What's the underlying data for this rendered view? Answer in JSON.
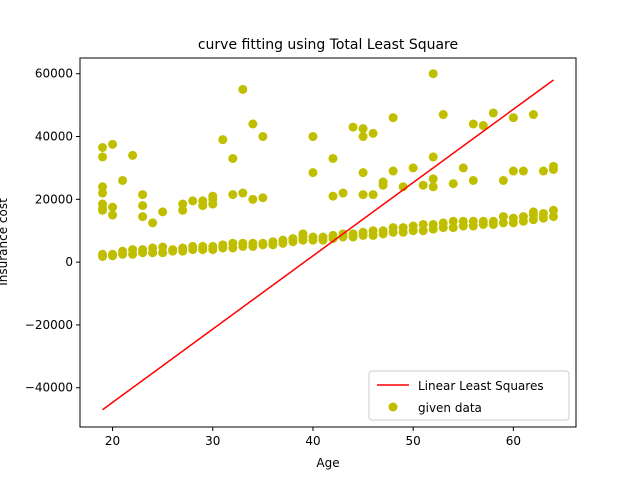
{
  "chart_data": {
    "type": "scatter",
    "title": "curve fitting using Total Least Square",
    "xlabel": "Age",
    "ylabel": "Insurance cost",
    "xlim": [
      16.75,
      66.25
    ],
    "ylim": [
      -52500,
      65000
    ],
    "xticks": [
      20,
      30,
      40,
      50,
      60
    ],
    "yticks": [
      -40000,
      -20000,
      0,
      20000,
      40000,
      60000
    ],
    "xtick_labels": [
      "20",
      "30",
      "40",
      "50",
      "60"
    ],
    "ytick_labels": [
      "−40000",
      "−20000",
      "0",
      "20000",
      "40000",
      "60000"
    ],
    "grid": false,
    "legend_position": "lower-right",
    "series": [
      {
        "name": "Linear Least Squares",
        "kind": "line",
        "color": "#ff0000",
        "x": [
          19,
          64
        ],
        "y": [
          -47000,
          58000
        ]
      },
      {
        "name": "given data",
        "kind": "scatter",
        "color": "#bfbf00",
        "points": [
          [
            19,
            1800
          ],
          [
            19,
            2500
          ],
          [
            19,
            36500
          ],
          [
            19,
            33500
          ],
          [
            19,
            24000
          ],
          [
            19,
            22000
          ],
          [
            19,
            18500
          ],
          [
            19,
            17000
          ],
          [
            19,
            16500
          ],
          [
            20,
            2000
          ],
          [
            20,
            37500
          ],
          [
            20,
            17500
          ],
          [
            20,
            15000
          ],
          [
            20,
            2500
          ],
          [
            21,
            2500
          ],
          [
            21,
            3500
          ],
          [
            21,
            26000
          ],
          [
            22,
            2500
          ],
          [
            22,
            4000
          ],
          [
            22,
            34000
          ],
          [
            23,
            3000
          ],
          [
            23,
            4000
          ],
          [
            23,
            21500
          ],
          [
            23,
            18000
          ],
          [
            23,
            14500
          ],
          [
            24,
            3000
          ],
          [
            24,
            4500
          ],
          [
            24,
            12500
          ],
          [
            25,
            3000
          ],
          [
            25,
            4800
          ],
          [
            25,
            16000
          ],
          [
            26,
            3500
          ],
          [
            26,
            4000
          ],
          [
            27,
            3500
          ],
          [
            27,
            4500
          ],
          [
            27,
            16500
          ],
          [
            27,
            18500
          ],
          [
            28,
            4000
          ],
          [
            28,
            5000
          ],
          [
            28,
            19500
          ],
          [
            29,
            4000
          ],
          [
            29,
            5000
          ],
          [
            29,
            18000
          ],
          [
            29,
            19500
          ],
          [
            30,
            4000
          ],
          [
            30,
            5000
          ],
          [
            30,
            18500
          ],
          [
            30,
            20000
          ],
          [
            30,
            21000
          ],
          [
            31,
            4500
          ],
          [
            31,
            5500
          ],
          [
            31,
            39000
          ],
          [
            32,
            4500
          ],
          [
            32,
            6000
          ],
          [
            32,
            33000
          ],
          [
            32,
            21500
          ],
          [
            33,
            5000
          ],
          [
            33,
            6000
          ],
          [
            33,
            55000
          ],
          [
            33,
            22000
          ],
          [
            34,
            5000
          ],
          [
            34,
            6000
          ],
          [
            34,
            44000
          ],
          [
            34,
            20000
          ],
          [
            35,
            5500
          ],
          [
            35,
            6000
          ],
          [
            35,
            40000
          ],
          [
            35,
            20500
          ],
          [
            36,
            5500
          ],
          [
            36,
            6500
          ],
          [
            37,
            6000
          ],
          [
            37,
            7000
          ],
          [
            38,
            6500
          ],
          [
            38,
            7500
          ],
          [
            39,
            7000
          ],
          [
            39,
            8000
          ],
          [
            39,
            9000
          ],
          [
            40,
            7000
          ],
          [
            40,
            8000
          ],
          [
            40,
            40000
          ],
          [
            40,
            28500
          ],
          [
            41,
            7000
          ],
          [
            41,
            8000
          ],
          [
            42,
            7500
          ],
          [
            42,
            8500
          ],
          [
            42,
            21000
          ],
          [
            42,
            33000
          ],
          [
            43,
            8000
          ],
          [
            43,
            9000
          ],
          [
            43,
            22000
          ],
          [
            44,
            8000
          ],
          [
            44,
            9000
          ],
          [
            44,
            43000
          ],
          [
            45,
            8500
          ],
          [
            45,
            9500
          ],
          [
            45,
            40000
          ],
          [
            45,
            42500
          ],
          [
            45,
            28500
          ],
          [
            45,
            21500
          ],
          [
            46,
            8500
          ],
          [
            46,
            10000
          ],
          [
            46,
            41000
          ],
          [
            46,
            21500
          ],
          [
            47,
            9000
          ],
          [
            47,
            10000
          ],
          [
            47,
            24500
          ],
          [
            47,
            25500
          ],
          [
            48,
            9500
          ],
          [
            48,
            11000
          ],
          [
            48,
            46000
          ],
          [
            48,
            29000
          ],
          [
            49,
            9500
          ],
          [
            49,
            11000
          ],
          [
            49,
            24000
          ],
          [
            50,
            10000
          ],
          [
            50,
            11500
          ],
          [
            50,
            30000
          ],
          [
            51,
            10000
          ],
          [
            51,
            12000
          ],
          [
            51,
            24500
          ],
          [
            52,
            10500
          ],
          [
            52,
            12000
          ],
          [
            52,
            60000
          ],
          [
            52,
            33500
          ],
          [
            52,
            26500
          ],
          [
            52,
            24000
          ],
          [
            53,
            11000
          ],
          [
            53,
            12500
          ],
          [
            53,
            47000
          ],
          [
            54,
            11000
          ],
          [
            54,
            13000
          ],
          [
            54,
            25000
          ],
          [
            55,
            11500
          ],
          [
            55,
            13000
          ],
          [
            55,
            30000
          ],
          [
            56,
            11500
          ],
          [
            56,
            13000
          ],
          [
            56,
            44000
          ],
          [
            56,
            26000
          ],
          [
            57,
            12000
          ],
          [
            57,
            13000
          ],
          [
            57,
            43500
          ],
          [
            58,
            12000
          ],
          [
            58,
            13000
          ],
          [
            58,
            47500
          ],
          [
            59,
            12500
          ],
          [
            59,
            14500
          ],
          [
            59,
            26000
          ],
          [
            60,
            12500
          ],
          [
            60,
            14000
          ],
          [
            60,
            46000
          ],
          [
            60,
            29000
          ],
          [
            61,
            13000
          ],
          [
            61,
            14500
          ],
          [
            61,
            29000
          ],
          [
            62,
            13500
          ],
          [
            62,
            15000
          ],
          [
            62,
            47000
          ],
          [
            62,
            16000
          ],
          [
            63,
            14000
          ],
          [
            63,
            15500
          ],
          [
            63,
            29000
          ],
          [
            64,
            14500
          ],
          [
            64,
            16500
          ],
          [
            64,
            29500
          ],
          [
            64,
            30500
          ]
        ]
      }
    ]
  }
}
